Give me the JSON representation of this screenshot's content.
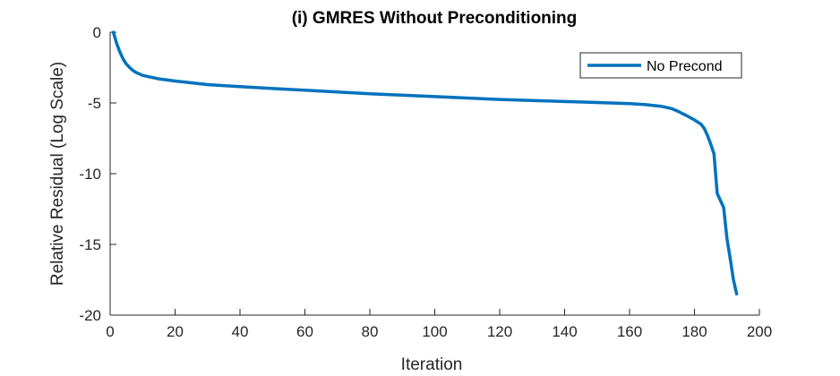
{
  "chart_data": {
    "type": "line",
    "title": "(i) GMRES Without Preconditioning",
    "xlabel": "Iteration",
    "ylabel": "Relative Residual (Log Scale)",
    "xlim": [
      0,
      200
    ],
    "ylim": [
      -20,
      0
    ],
    "xticks": [
      0,
      20,
      40,
      60,
      80,
      100,
      120,
      140,
      160,
      180,
      200
    ],
    "yticks": [
      0,
      -5,
      -10,
      -15,
      -20
    ],
    "grid": false,
    "legend_position": "top-right",
    "series": [
      {
        "name": "No Precond",
        "color": "#0072BD",
        "x": [
          1,
          2,
          3,
          4,
          5,
          6,
          7,
          8,
          10,
          12,
          15,
          20,
          30,
          40,
          50,
          60,
          80,
          100,
          120,
          140,
          150,
          160,
          165,
          170,
          173,
          175,
          178,
          180,
          182,
          183,
          184,
          185,
          186,
          187,
          189,
          190,
          191,
          192,
          193
        ],
        "y": [
          0,
          -0.8,
          -1.4,
          -1.9,
          -2.25,
          -2.5,
          -2.7,
          -2.85,
          -3.05,
          -3.15,
          -3.3,
          -3.45,
          -3.7,
          -3.85,
          -3.98,
          -4.1,
          -4.35,
          -4.55,
          -4.75,
          -4.9,
          -4.97,
          -5.05,
          -5.12,
          -5.25,
          -5.4,
          -5.6,
          -5.95,
          -6.2,
          -6.5,
          -6.8,
          -7.3,
          -7.9,
          -8.6,
          -11.4,
          -12.4,
          -14.6,
          -16.0,
          -17.5,
          -18.5
        ]
      }
    ]
  }
}
